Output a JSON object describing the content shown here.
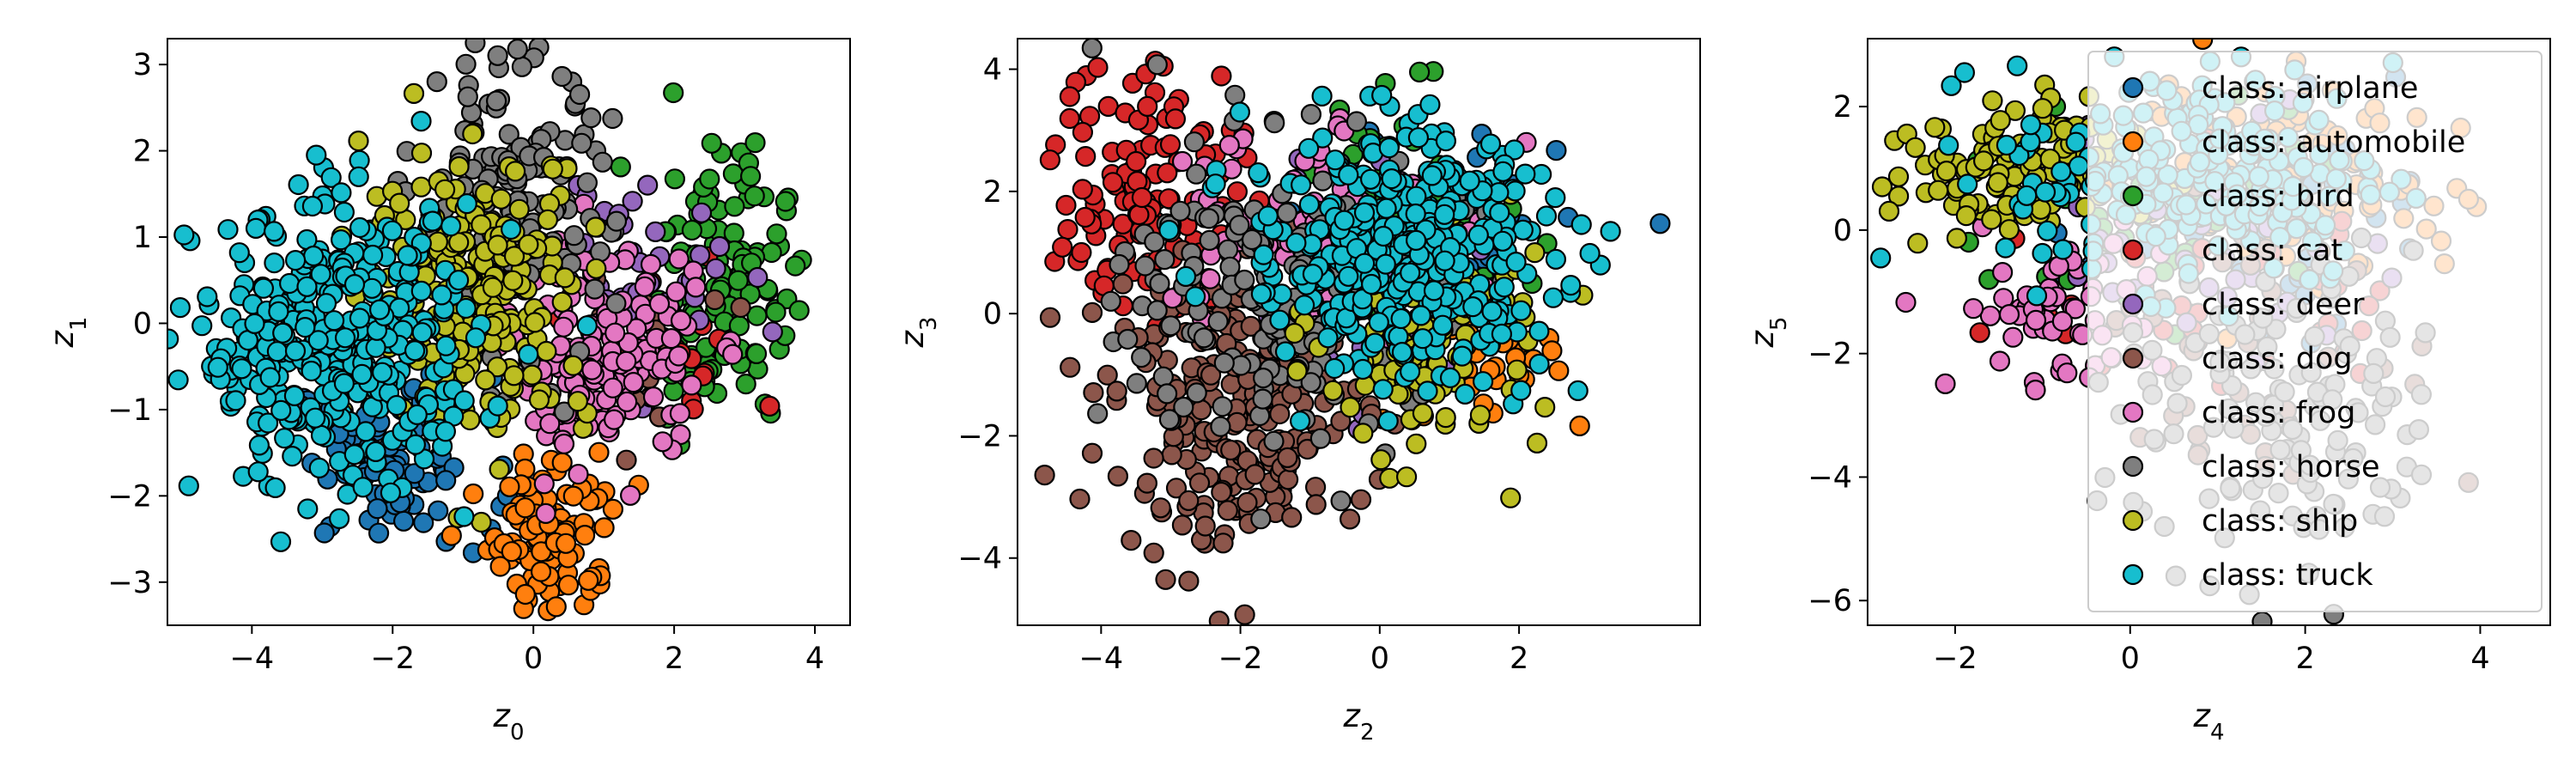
{
  "chart_data": [
    {
      "type": "scatter",
      "title": "",
      "xlabel": "z",
      "xlabel_sub": "0",
      "ylabel": "z",
      "ylabel_sub": "1",
      "xlim": [
        -5.2,
        4.5
      ],
      "ylim": [
        -3.5,
        3.3
      ],
      "xticks": [
        -4,
        -2,
        0,
        2,
        4
      ],
      "yticks": [
        -3,
        -2,
        -1,
        0,
        1,
        2,
        3
      ],
      "grid": false,
      "series": [
        {
          "name": "class: airplane",
          "clusters": [
            {
              "cx": -2.0,
              "cy": -1.6,
              "sx": 0.7,
              "sy": 0.5,
              "n": 90
            }
          ]
        },
        {
          "name": "class: automobile",
          "clusters": [
            {
              "cx": 0.3,
              "cy": -2.4,
              "sx": 0.45,
              "sy": 0.45,
              "n": 110
            }
          ]
        },
        {
          "name": "class: bird",
          "clusters": [
            {
              "cx": 2.6,
              "cy": 0.5,
              "sx": 0.5,
              "sy": 0.8,
              "n": 130
            }
          ]
        },
        {
          "name": "class: cat",
          "clusters": [
            {
              "cx": 1.8,
              "cy": -0.4,
              "sx": 0.6,
              "sy": 0.5,
              "n": 25
            }
          ]
        },
        {
          "name": "class: deer",
          "clusters": [
            {
              "cx": 1.5,
              "cy": 0.6,
              "sx": 0.7,
              "sy": 0.6,
              "n": 45
            }
          ]
        },
        {
          "name": "class: dog",
          "clusters": [
            {
              "cx": 1.2,
              "cy": -0.3,
              "sx": 0.6,
              "sy": 0.5,
              "n": 25
            }
          ]
        },
        {
          "name": "class: frog",
          "clusters": [
            {
              "cx": 1.0,
              "cy": -0.4,
              "sx": 0.7,
              "sy": 0.6,
              "n": 170
            }
          ]
        },
        {
          "name": "class: horse",
          "clusters": [
            {
              "cx": -0.3,
              "cy": 1.3,
              "sx": 0.7,
              "sy": 0.9,
              "n": 150
            }
          ]
        },
        {
          "name": "class: ship",
          "clusters": [
            {
              "cx": -0.8,
              "cy": 0.4,
              "sx": 0.8,
              "sy": 0.8,
              "n": 230
            }
          ]
        },
        {
          "name": "class: truck",
          "clusters": [
            {
              "cx": -2.8,
              "cy": -0.3,
              "sx": 1.0,
              "sy": 0.8,
              "n": 380
            }
          ]
        }
      ]
    },
    {
      "type": "scatter",
      "title": "",
      "xlabel": "z",
      "xlabel_sub": "2",
      "ylabel": "z",
      "ylabel_sub": "3",
      "xlim": [
        -5.2,
        4.6
      ],
      "ylim": [
        -5.1,
        4.5
      ],
      "xticks": [
        -4,
        -2,
        0,
        2
      ],
      "yticks": [
        -4,
        -2,
        0,
        2,
        4
      ],
      "grid": false,
      "series": [
        {
          "name": "class: airplane",
          "clusters": [
            {
              "cx": 0.8,
              "cy": 1.4,
              "sx": 0.9,
              "sy": 0.9,
              "n": 60
            }
          ]
        },
        {
          "name": "class: automobile",
          "clusters": [
            {
              "cx": 1.2,
              "cy": -0.8,
              "sx": 0.7,
              "sy": 0.5,
              "n": 40
            }
          ]
        },
        {
          "name": "class: bird",
          "clusters": [
            {
              "cx": 0.5,
              "cy": 1.8,
              "sx": 0.9,
              "sy": 0.9,
              "n": 40
            }
          ]
        },
        {
          "name": "class: cat",
          "clusters": [
            {
              "cx": -3.3,
              "cy": 2.2,
              "sx": 0.7,
              "sy": 1.1,
              "n": 120
            }
          ]
        },
        {
          "name": "class: deer",
          "clusters": [
            {
              "cx": -0.5,
              "cy": 0.5,
              "sx": 1.2,
              "sy": 1.2,
              "n": 40
            }
          ]
        },
        {
          "name": "class: dog",
          "clusters": [
            {
              "cx": -2.0,
              "cy": -1.5,
              "sx": 0.9,
              "sy": 1.2,
              "n": 260
            }
          ]
        },
        {
          "name": "class: frog",
          "clusters": [
            {
              "cx": -1.2,
              "cy": 1.6,
              "sx": 1.0,
              "sy": 1.0,
              "n": 80
            }
          ]
        },
        {
          "name": "class: horse",
          "clusters": [
            {
              "cx": -1.3,
              "cy": 0.2,
              "sx": 1.2,
              "sy": 1.3,
              "n": 200
            }
          ]
        },
        {
          "name": "class: ship",
          "clusters": [
            {
              "cx": 0.7,
              "cy": -0.5,
              "sx": 0.8,
              "sy": 0.9,
              "n": 110
            }
          ]
        },
        {
          "name": "class: truck",
          "clusters": [
            {
              "cx": 0.3,
              "cy": 1.0,
              "sx": 1.1,
              "sy": 1.0,
              "n": 380
            }
          ]
        }
      ]
    },
    {
      "type": "scatter",
      "title": "",
      "xlabel": "z",
      "xlabel_sub": "4",
      "ylabel": "z",
      "ylabel_sub": "5",
      "xlim": [
        -3.0,
        4.8
      ],
      "ylim": [
        -6.4,
        3.1
      ],
      "xticks": [
        -2,
        0,
        2,
        4
      ],
      "yticks": [
        -6,
        -4,
        -2,
        0,
        2
      ],
      "grid": false,
      "legend_position": "upper-right",
      "series": [
        {
          "name": "class: airplane",
          "clusters": [
            {
              "cx": 1.2,
              "cy": 0.3,
              "sx": 0.9,
              "sy": 1.0,
              "n": 50
            }
          ]
        },
        {
          "name": "class: automobile",
          "clusters": [
            {
              "cx": 2.0,
              "cy": 0.8,
              "sx": 1.0,
              "sy": 1.0,
              "n": 90
            }
          ]
        },
        {
          "name": "class: bird",
          "clusters": [
            {
              "cx": 0.5,
              "cy": 0.5,
              "sx": 1.0,
              "sy": 1.0,
              "n": 40
            }
          ]
        },
        {
          "name": "class: cat",
          "clusters": [
            {
              "cx": 1.0,
              "cy": -1.0,
              "sx": 1.0,
              "sy": 1.0,
              "n": 40
            }
          ]
        },
        {
          "name": "class: deer",
          "clusters": [
            {
              "cx": 1.0,
              "cy": 0.0,
              "sx": 1.0,
              "sy": 1.0,
              "n": 40
            }
          ]
        },
        {
          "name": "class: dog",
          "clusters": [
            {
              "cx": 1.5,
              "cy": -2.0,
              "sx": 1.0,
              "sy": 1.2,
              "n": 40
            }
          ]
        },
        {
          "name": "class: frog",
          "clusters": [
            {
              "cx": -0.8,
              "cy": -1.3,
              "sx": 0.6,
              "sy": 0.7,
              "n": 60
            }
          ]
        },
        {
          "name": "class: horse",
          "clusters": [
            {
              "cx": 1.8,
              "cy": -3.2,
              "sx": 1.0,
              "sy": 1.3,
              "n": 130
            }
          ]
        },
        {
          "name": "class: ship",
          "clusters": [
            {
              "cx": -1.4,
              "cy": 0.9,
              "sx": 0.7,
              "sy": 0.6,
              "n": 120
            }
          ]
        },
        {
          "name": "class: truck",
          "clusters": [
            {
              "cx": 0.8,
              "cy": 0.9,
              "sx": 1.1,
              "sy": 0.9,
              "n": 220
            }
          ]
        }
      ]
    }
  ],
  "legend": {
    "entries": [
      {
        "label": "class: airplane",
        "color": "#1f77b4"
      },
      {
        "label": "class: automobile",
        "color": "#ff7f0e"
      },
      {
        "label": "class: bird",
        "color": "#2ca02c"
      },
      {
        "label": "class: cat",
        "color": "#d62728"
      },
      {
        "label": "class: deer",
        "color": "#9467bd"
      },
      {
        "label": "class: dog",
        "color": "#8c564b"
      },
      {
        "label": "class: frog",
        "color": "#e377c2"
      },
      {
        "label": "class: horse",
        "color": "#7f7f7f"
      },
      {
        "label": "class: ship",
        "color": "#bcbd22"
      },
      {
        "label": "class: truck",
        "color": "#17becf"
      }
    ]
  }
}
